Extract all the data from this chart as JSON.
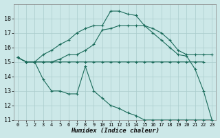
{
  "xlabel": "Humidex (Indice chaleur)",
  "bg_color": "#cce8e8",
  "grid_color": "#aacccc",
  "line_color": "#1a6b5a",
  "xlim": [
    -0.5,
    23.5
  ],
  "ylim": [
    11,
    19
  ],
  "yticks": [
    11,
    12,
    13,
    14,
    15,
    16,
    17,
    18
  ],
  "xticks": [
    0,
    1,
    2,
    3,
    4,
    5,
    6,
    7,
    8,
    9,
    10,
    11,
    12,
    13,
    14,
    15,
    16,
    17,
    18,
    19,
    20,
    21,
    22,
    23
  ],
  "series": [
    {
      "x": [
        0,
        1,
        2,
        3,
        4,
        5,
        6,
        7,
        8,
        9,
        10,
        11,
        12,
        13,
        14,
        15,
        16,
        17,
        18,
        19,
        20,
        21,
        22,
        23
      ],
      "y": [
        15.3,
        15.0,
        15.0,
        15.5,
        15.8,
        16.2,
        16.5,
        17.0,
        17.3,
        17.5,
        17.5,
        18.5,
        18.5,
        18.3,
        18.2,
        17.5,
        17.0,
        16.5,
        16.0,
        15.5,
        15.4,
        14.5,
        13.0,
        11.0
      ]
    },
    {
      "x": [
        0,
        1,
        2,
        3,
        4,
        5,
        6,
        7,
        8,
        9,
        10,
        11,
        12,
        13,
        14,
        15,
        16,
        17,
        18,
        19,
        20,
        21,
        22,
        23
      ],
      "y": [
        15.3,
        15.0,
        15.0,
        15.0,
        15.0,
        15.2,
        15.5,
        15.5,
        15.8,
        16.2,
        17.2,
        17.3,
        17.5,
        17.5,
        17.5,
        17.5,
        17.3,
        17.0,
        16.5,
        15.8,
        15.5,
        15.5,
        15.5,
        15.5
      ]
    },
    {
      "x": [
        0,
        1,
        2,
        3,
        4,
        5,
        6,
        7,
        8,
        9,
        10,
        11,
        12,
        13,
        14,
        15,
        16,
        17,
        18,
        19,
        20,
        21,
        22
      ],
      "y": [
        15.3,
        15.0,
        15.0,
        15.0,
        15.0,
        15.0,
        15.0,
        15.0,
        15.0,
        15.0,
        15.0,
        15.0,
        15.0,
        15.0,
        15.0,
        15.0,
        15.0,
        15.0,
        15.0,
        15.0,
        15.0,
        15.0,
        15.0
      ]
    },
    {
      "x": [
        0,
        1,
        2,
        3,
        4,
        5,
        6,
        7,
        8,
        9,
        10,
        11,
        12,
        13,
        14,
        15,
        16,
        17,
        18,
        19,
        20,
        21,
        22,
        23
      ],
      "y": [
        15.3,
        15.0,
        15.0,
        13.8,
        13.0,
        13.0,
        12.8,
        12.8,
        14.7,
        13.0,
        12.5,
        12.0,
        11.8,
        11.5,
        11.3,
        11.0,
        11.0,
        11.0,
        11.0,
        11.0,
        11.0,
        11.0,
        11.0,
        11.0
      ]
    }
  ]
}
